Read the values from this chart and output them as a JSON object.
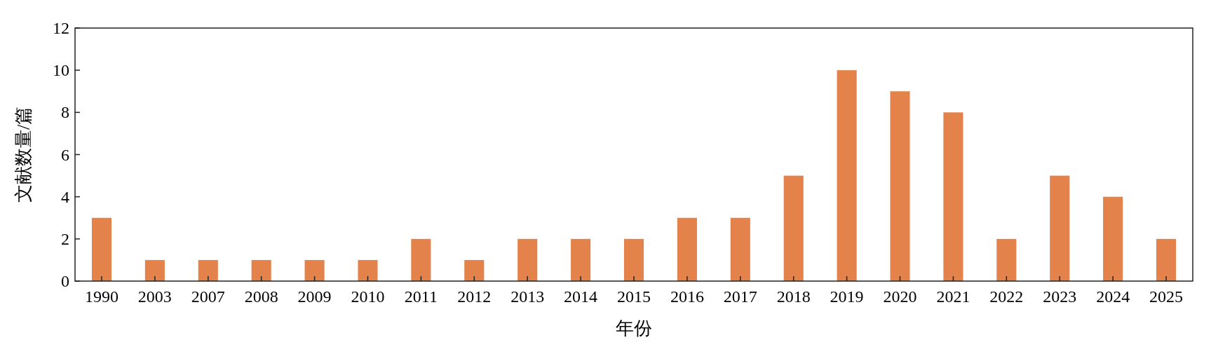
{
  "chart_data": {
    "type": "bar",
    "xlabel": "年份",
    "ylabel": "文献数量/篇",
    "categories": [
      "1990",
      "2003",
      "2007",
      "2008",
      "2009",
      "2010",
      "2011",
      "2012",
      "2013",
      "2014",
      "2015",
      "2016",
      "2017",
      "2018",
      "2019",
      "2020",
      "2021",
      "2022",
      "2023",
      "2024",
      "2025"
    ],
    "values": [
      3,
      1,
      1,
      1,
      1,
      1,
      2,
      1,
      2,
      2,
      2,
      3,
      3,
      5,
      10,
      9,
      8,
      2,
      5,
      4,
      2
    ],
    "color": "#e3824a",
    "ylim": [
      0,
      12
    ],
    "yticks": [
      0,
      2,
      4,
      6,
      8,
      10,
      12
    ]
  }
}
